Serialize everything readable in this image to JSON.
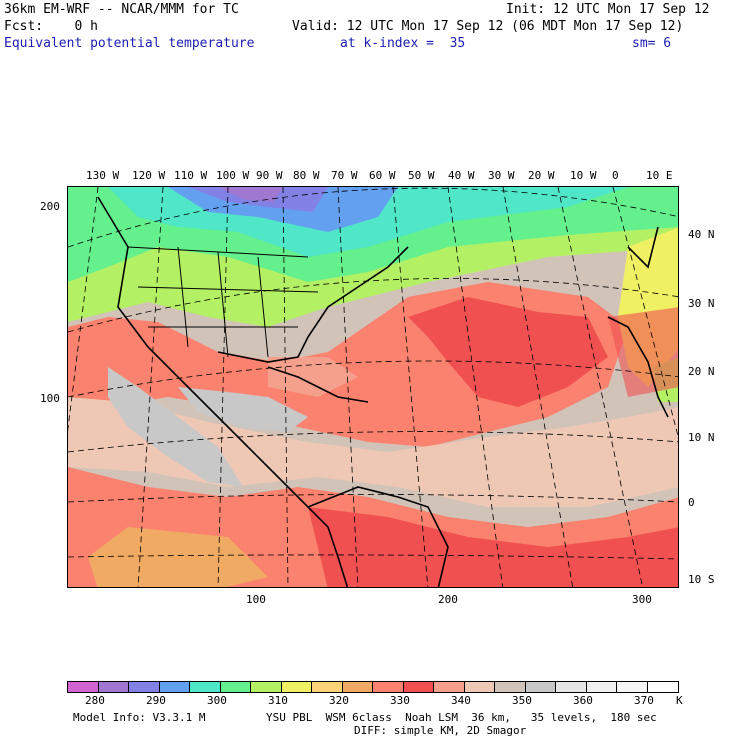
{
  "header": {
    "model": "36km EM-WRF -- NCAR/MMM for TC",
    "init": "Init: 12 UTC Mon 17 Sep 12",
    "fcst": "Fcst:    0 h",
    "valid": "Valid: 12 UTC Mon 17 Sep 12 (06 MDT Mon 17 Sep 12)",
    "field": "Equivalent potential temperature",
    "level": "at k-index =  35",
    "smooth": "sm= 6"
  },
  "map": {
    "top_lon_labels": [
      "130 W",
      "120 W",
      "110 W",
      "100 W",
      "90 W",
      "80 W",
      "70 W",
      "60 W",
      "50 W",
      "40 W",
      "30 W",
      "20 W",
      "10 W",
      "0",
      "10 E"
    ],
    "right_lat_labels": [
      "40 N",
      "30 N",
      "20 N",
      "10 N",
      "0",
      "10 S"
    ],
    "left_grid_labels": [
      "200",
      "100"
    ],
    "bottom_grid_labels": [
      "100",
      "200",
      "300"
    ]
  },
  "colorbar": {
    "labels": [
      "280",
      "290",
      "300",
      "310",
      "320",
      "330",
      "340",
      "350",
      "360",
      "370"
    ],
    "unit": "K",
    "colors": [
      "#d264d2",
      "#a078d2",
      "#8282e6",
      "#64a0f0",
      "#50e6c8",
      "#64f08c",
      "#b4f064",
      "#f0f064",
      "#fad278",
      "#f0aa64",
      "#fa826e",
      "#f05050",
      "#f5a08c",
      "#eec8b4",
      "#d2c3b9",
      "#c8c8c8",
      "#e6e6e6",
      "#f0f0f0",
      "#f5f5f5",
      "#ffffff"
    ]
  },
  "footer": {
    "model_info": "Model Info: V3.3.1 M",
    "physics": "YSU PBL  WSM 6class  Noah LSM  36 km,   35 levels,  180 sec",
    "diff": "DIFF: simple KM, 2D Smagor"
  }
}
